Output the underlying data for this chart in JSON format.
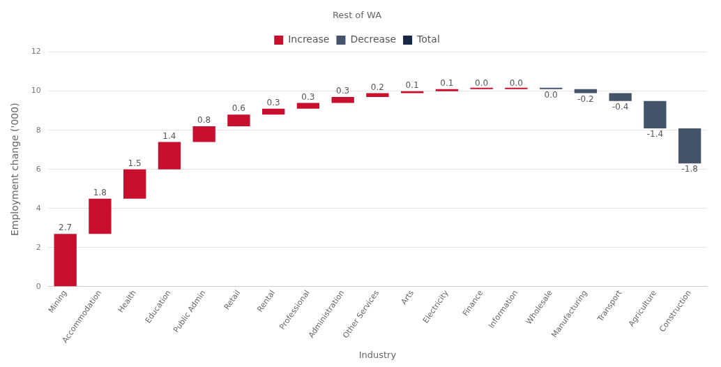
{
  "chart_data": {
    "type": "bar",
    "title": "Rest of WA",
    "xlabel": "Industry",
    "ylabel": "Employment change ('000)",
    "categories": [
      "Mining",
      "Accommodation",
      "Health",
      "Education",
      "Public Admin",
      "Retail",
      "Rental",
      "Professional",
      "Administration",
      "Other Services",
      "Arts",
      "Electricity",
      "Finance",
      "Information",
      "Wholesale",
      "Manufacturing",
      "Transport",
      "Agriculture",
      "Construction"
    ],
    "series": [
      {
        "name": "Increase",
        "color": "#c8102e",
        "base": [
          0,
          2.7,
          4.5,
          6.0,
          7.4,
          8.2,
          8.8,
          9.1,
          9.4,
          9.7,
          9.9,
          10.0,
          10.1,
          10.1,
          null,
          null,
          null,
          null,
          null
        ],
        "values": [
          2.7,
          1.8,
          1.5,
          1.4,
          0.8,
          0.6,
          0.3,
          0.3,
          0.3,
          0.2,
          0.1,
          0.1,
          0,
          0,
          null,
          null,
          null,
          null,
          null
        ],
        "value_labels": [
          "2.7",
          "1.8",
          "1.5",
          "1.4",
          "0.8",
          "0.6",
          "0.3",
          "0.3",
          "0.3",
          "0.2",
          "0.1",
          "0.1",
          "0.0",
          "0.0",
          null,
          null,
          null,
          null,
          null
        ]
      },
      {
        "name": "Decrease",
        "color": "#44546a",
        "base": [
          null,
          null,
          null,
          null,
          null,
          null,
          null,
          null,
          null,
          null,
          null,
          null,
          null,
          null,
          10.1,
          10.1,
          9.9,
          9.5,
          8.1
        ],
        "values": [
          null,
          null,
          null,
          null,
          null,
          null,
          null,
          null,
          null,
          null,
          null,
          null,
          null,
          null,
          0,
          -0.2,
          -0.4,
          -1.4,
          -1.8
        ],
        "value_labels": [
          null,
          null,
          null,
          null,
          null,
          null,
          null,
          null,
          null,
          null,
          null,
          null,
          null,
          null,
          "0.0",
          "-0.2",
          "-0.4",
          "-1.4",
          "-1.8"
        ]
      },
      {
        "name": "Total",
        "color": "#1a2744",
        "values": [
          null,
          null,
          null,
          null,
          null,
          null,
          null,
          null,
          null,
          null,
          null,
          null,
          null,
          null,
          null,
          null,
          null,
          null,
          null
        ]
      }
    ],
    "ylim": [
      0,
      12
    ],
    "yticks": [
      0,
      2,
      4,
      6,
      8,
      10,
      12
    ],
    "grid": "y",
    "legend": "top"
  }
}
